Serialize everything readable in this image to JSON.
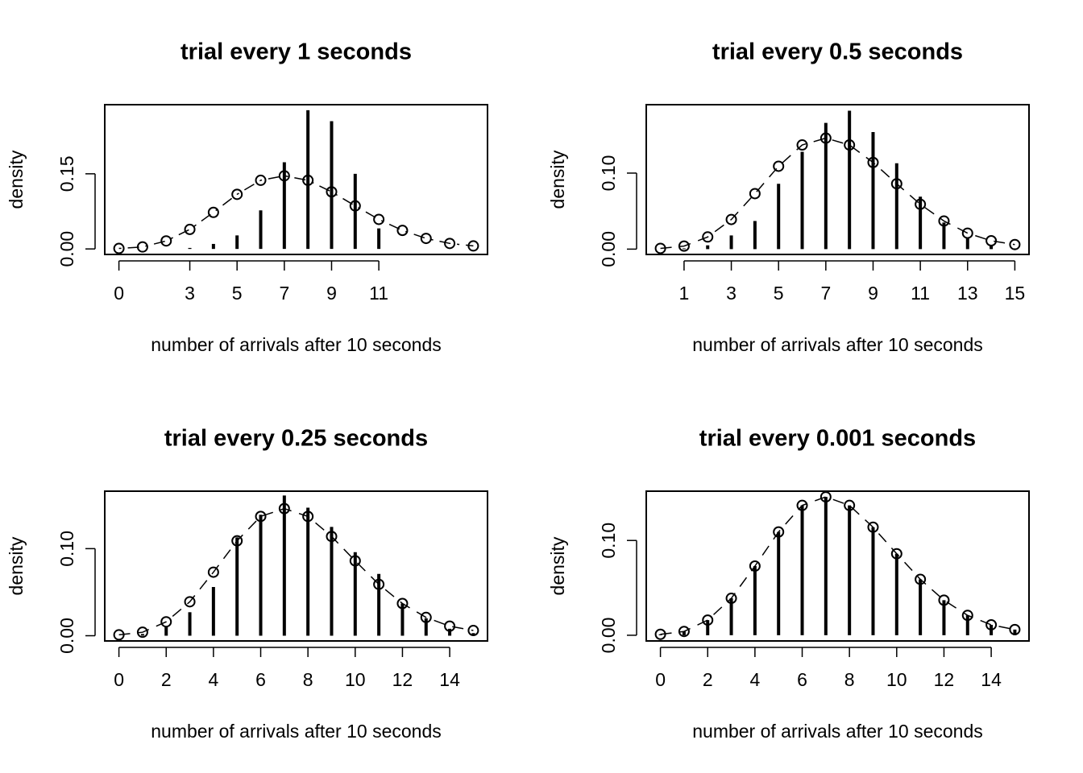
{
  "chart_data": [
    {
      "type": "stem",
      "title": "trial every 1 seconds",
      "x_label": "number of arrivals after 10 seconds",
      "y_label": "density",
      "x": [
        0,
        1,
        2,
        3,
        4,
        5,
        6,
        7,
        8,
        9,
        10,
        11,
        12,
        13,
        14,
        15
      ],
      "series": [
        {
          "style": "stem",
          "color": "#000000",
          "values": [
            0,
            0,
            0,
            0.002,
            0.01,
            0.027,
            0.077,
            0.173,
            0.277,
            0.255,
            0.15,
            0.041,
            0,
            0,
            0,
            0
          ]
        },
        {
          "style": "points-line",
          "line_dash": "dotdash",
          "color": "#000000",
          "values": [
            0.001,
            0.004,
            0.016,
            0.039,
            0.073,
            0.109,
            0.137,
            0.146,
            0.137,
            0.114,
            0.086,
            0.059,
            0.037,
            0.021,
            0.011,
            0.006
          ]
        }
      ],
      "xlim": [
        -0.6,
        15.6
      ],
      "ylim": [
        -0.011,
        0.288
      ],
      "xticks": [
        0,
        3,
        5,
        7,
        9,
        11
      ],
      "yticks": [
        {
          "value": 0,
          "label": "0.00"
        },
        {
          "value": 0.15,
          "label": "0.15"
        }
      ]
    },
    {
      "type": "stem",
      "title": "trial every 0.5 seconds",
      "x_label": "number of arrivals after 10 seconds",
      "y_label": "density",
      "x": [
        0,
        1,
        2,
        3,
        4,
        5,
        6,
        7,
        8,
        9,
        10,
        11,
        12,
        13,
        14,
        15
      ],
      "series": [
        {
          "style": "stem",
          "color": "#000000",
          "values": [
            0,
            0.001,
            0.005,
            0.018,
            0.037,
            0.086,
            0.128,
            0.166,
            0.182,
            0.154,
            0.113,
            0.069,
            0.035,
            0.015,
            0.005,
            0.001
          ]
        },
        {
          "style": "points-line",
          "line_dash": "dashed",
          "color": "#000000",
          "values": [
            0.001,
            0.004,
            0.016,
            0.039,
            0.073,
            0.109,
            0.137,
            0.146,
            0.137,
            0.114,
            0.086,
            0.059,
            0.037,
            0.021,
            0.011,
            0.006
          ]
        }
      ],
      "xlim": [
        -0.6,
        15.6
      ],
      "ylim": [
        -0.007,
        0.19
      ],
      "xticks": [
        1,
        3,
        5,
        7,
        9,
        11,
        13,
        15
      ],
      "yticks": [
        {
          "value": 0,
          "label": "0.00"
        },
        {
          "value": 0.1,
          "label": "0.10"
        }
      ]
    },
    {
      "type": "stem",
      "title": "trial every 0.25 seconds",
      "x_label": "number of arrivals after 10 seconds",
      "y_label": "density",
      "x": [
        0,
        1,
        2,
        3,
        4,
        5,
        6,
        7,
        8,
        9,
        10,
        11,
        12,
        13,
        14,
        15
      ],
      "series": [
        {
          "style": "stem",
          "color": "#000000",
          "values": [
            0,
            0.002,
            0.01,
            0.027,
            0.056,
            0.113,
            0.139,
            0.161,
            0.147,
            0.125,
            0.096,
            0.071,
            0.037,
            0.02,
            0.008,
            0.003
          ]
        },
        {
          "style": "points-line",
          "line_dash": "dashed",
          "color": "#000000",
          "values": [
            0.001,
            0.004,
            0.016,
            0.039,
            0.073,
            0.109,
            0.137,
            0.146,
            0.137,
            0.114,
            0.086,
            0.059,
            0.037,
            0.021,
            0.011,
            0.006
          ]
        }
      ],
      "xlim": [
        -0.6,
        15.6
      ],
      "ylim": [
        -0.006,
        0.166
      ],
      "xticks": [
        0,
        2,
        4,
        6,
        8,
        10,
        12,
        14
      ],
      "yticks": [
        {
          "value": 0,
          "label": "0.00"
        },
        {
          "value": 0.1,
          "label": "0.10"
        }
      ]
    },
    {
      "type": "stem",
      "title": "trial every 0.001 seconds",
      "x_label": "number of arrivals after 10 seconds",
      "y_label": "density",
      "x": [
        0,
        1,
        2,
        3,
        4,
        5,
        6,
        7,
        8,
        9,
        10,
        11,
        12,
        13,
        14,
        15
      ],
      "series": [
        {
          "style": "stem",
          "color": "#000000",
          "values": [
            0.001,
            0.004,
            0.016,
            0.039,
            0.073,
            0.109,
            0.137,
            0.146,
            0.137,
            0.114,
            0.086,
            0.059,
            0.037,
            0.021,
            0.011,
            0.006
          ]
        },
        {
          "style": "points-line",
          "line_dash": "dashed",
          "color": "#000000",
          "values": [
            0.001,
            0.004,
            0.016,
            0.039,
            0.073,
            0.109,
            0.137,
            0.146,
            0.137,
            0.114,
            0.086,
            0.059,
            0.037,
            0.021,
            0.011,
            0.006
          ]
        }
      ],
      "xlim": [
        -0.6,
        15.6
      ],
      "ylim": [
        -0.006,
        0.152
      ],
      "xticks": [
        0,
        2,
        4,
        6,
        8,
        10,
        12,
        14
      ],
      "yticks": [
        {
          "value": 0,
          "label": "0.00"
        },
        {
          "value": 0.1,
          "label": "0.10"
        }
      ]
    }
  ]
}
